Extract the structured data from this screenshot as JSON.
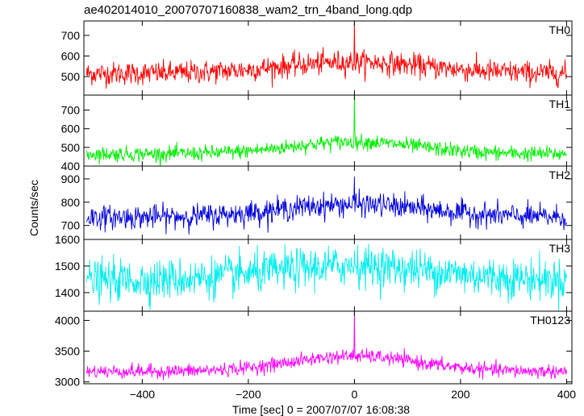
{
  "chart_data": {
    "type": "line",
    "title": "ae402014010_20070707160838_wam2_trn_4band_long.qdp",
    "xlabel": "Time [sec] 0 = 2007/07/07 16:08:38",
    "ylabel": "Counts/sec",
    "xlim": [
      -510,
      410
    ],
    "x_ticks": [
      -400,
      -200,
      0,
      200,
      400
    ],
    "x_tick_labels": [
      "−400",
      "−200",
      "0",
      "200",
      "400"
    ],
    "x_range": [
      -505,
      400
    ],
    "n_points": 906,
    "spike_x": 0,
    "grid": false,
    "panels": [
      {
        "name": "TH0",
        "color": "#ff0000",
        "ylim": [
          410,
          770
        ],
        "yticks": [
          500,
          600,
          700
        ],
        "base": 515,
        "bump_height": 55,
        "bump_width": 140,
        "noise": 28,
        "spike_peak": 770
      },
      {
        "name": "TH1",
        "color": "#00ee00",
        "ylim": [
          400,
          780
        ],
        "yticks": [
          400,
          500,
          600,
          700
        ],
        "base": 465,
        "bump_height": 65,
        "bump_width": 120,
        "noise": 20,
        "spike_peak": 780
      },
      {
        "name": "TH2",
        "color": "#0000dd",
        "ylim": [
          640,
          955
        ],
        "yticks": [
          700,
          800,
          900
        ],
        "base": 735,
        "bump_height": 55,
        "bump_width": 140,
        "noise": 25,
        "spike_peak": 910
      },
      {
        "name": "TH3",
        "color": "#00eeee",
        "ylim": [
          1330,
          1600
        ],
        "yticks": [
          1400,
          1500,
          1600
        ],
        "base": 1445,
        "bump_height": 55,
        "bump_width": 160,
        "noise": 38,
        "spike_peak": 1560
      },
      {
        "name": "TH0123",
        "color": "#ff00ff",
        "ylim": [
          2970,
          4150
        ],
        "yticks": [
          3000,
          3500,
          4000
        ],
        "base": 3170,
        "bump_height": 250,
        "bump_width": 120,
        "noise": 55,
        "spike_peak": 4150
      }
    ]
  }
}
